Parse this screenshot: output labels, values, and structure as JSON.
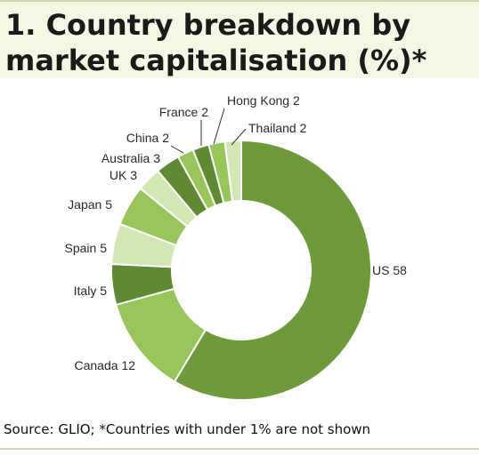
{
  "title": "1. Country breakdown by market capitalisation (%)*",
  "source": "Source: GLIO; *Countries with under 1% are not shown",
  "chart_data": {
    "type": "pie",
    "donut": true,
    "title": "1. Country breakdown by market capitalisation (%)*",
    "slices": [
      {
        "label": "US",
        "value": 58,
        "color": "#6e9a3b"
      },
      {
        "label": "Canada",
        "value": 12,
        "color": "#98c65a"
      },
      {
        "label": "Italy",
        "value": 5,
        "color": "#5f8a33"
      },
      {
        "label": "Spain",
        "value": 5,
        "color": "#d3e7b4"
      },
      {
        "label": "Japan",
        "value": 5,
        "color": "#98c65a"
      },
      {
        "label": "UK",
        "value": 3,
        "color": "#d3e7b4"
      },
      {
        "label": "Australia",
        "value": 3,
        "color": "#5f8a33"
      },
      {
        "label": "China",
        "value": 2,
        "color": "#98c65a"
      },
      {
        "label": "France",
        "value": 2,
        "color": "#5f8a33"
      },
      {
        "label": "Hong Kong",
        "value": 2,
        "color": "#98c65a"
      },
      {
        "label": "Thailand",
        "value": 2,
        "color": "#d3e7b4"
      }
    ]
  }
}
